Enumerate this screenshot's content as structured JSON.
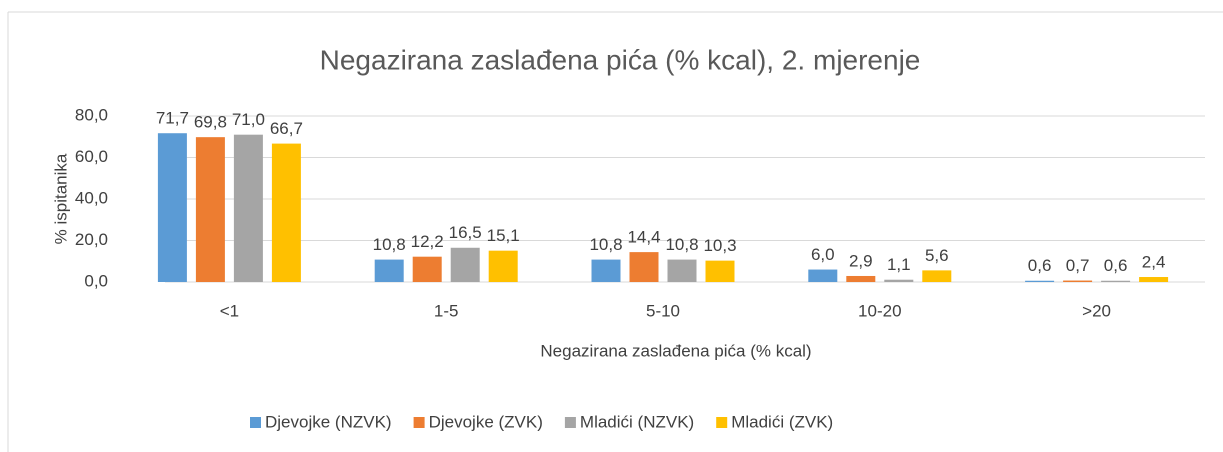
{
  "chart_data": {
    "type": "bar",
    "title": "Negazirana zaslađena pića (% kcal), 2. mjerenje",
    "x_label": "Negazirana zaslađena pića (% kcal)",
    "y_label": "% ispitanika",
    "categories": [
      "<1",
      "1-5",
      "5-10",
      "10-20",
      ">20"
    ],
    "series": [
      {
        "name": "Djevojke (NZVK)",
        "color": "#5b9bd5",
        "values": [
          71.7,
          10.8,
          10.8,
          6.0,
          0.6
        ],
        "value_labels": [
          "71,7",
          "10,8",
          "10,8",
          "6,0",
          "0,6"
        ]
      },
      {
        "name": "Djevojke (ZVK)",
        "color": "#ed7d31",
        "values": [
          69.8,
          12.2,
          14.4,
          2.9,
          0.7
        ],
        "value_labels": [
          "69,8",
          "12,2",
          "14,4",
          "2,9",
          "0,7"
        ]
      },
      {
        "name": "Mladići (NZVK)",
        "color": "#a5a5a5",
        "values": [
          71.0,
          16.5,
          10.8,
          1.1,
          0.6
        ],
        "value_labels": [
          "71,0",
          "16,5",
          "10,8",
          "1,1",
          "0,6"
        ]
      },
      {
        "name": "Mladići (ZVK)",
        "color": "#ffc000",
        "values": [
          66.7,
          15.1,
          10.3,
          5.6,
          2.4
        ],
        "value_labels": [
          "66,7",
          "15,1",
          "10,3",
          "5,6",
          "2,4"
        ]
      }
    ],
    "ylim": [
      0,
      80
    ],
    "yticks": [
      {
        "value": 0,
        "label": "0,0"
      },
      {
        "value": 20,
        "label": "20,0"
      },
      {
        "value": 40,
        "label": "40,0"
      },
      {
        "value": 60,
        "label": "60,0"
      },
      {
        "value": 80,
        "label": "80,0"
      }
    ],
    "grid": true,
    "legend": "bottom"
  }
}
